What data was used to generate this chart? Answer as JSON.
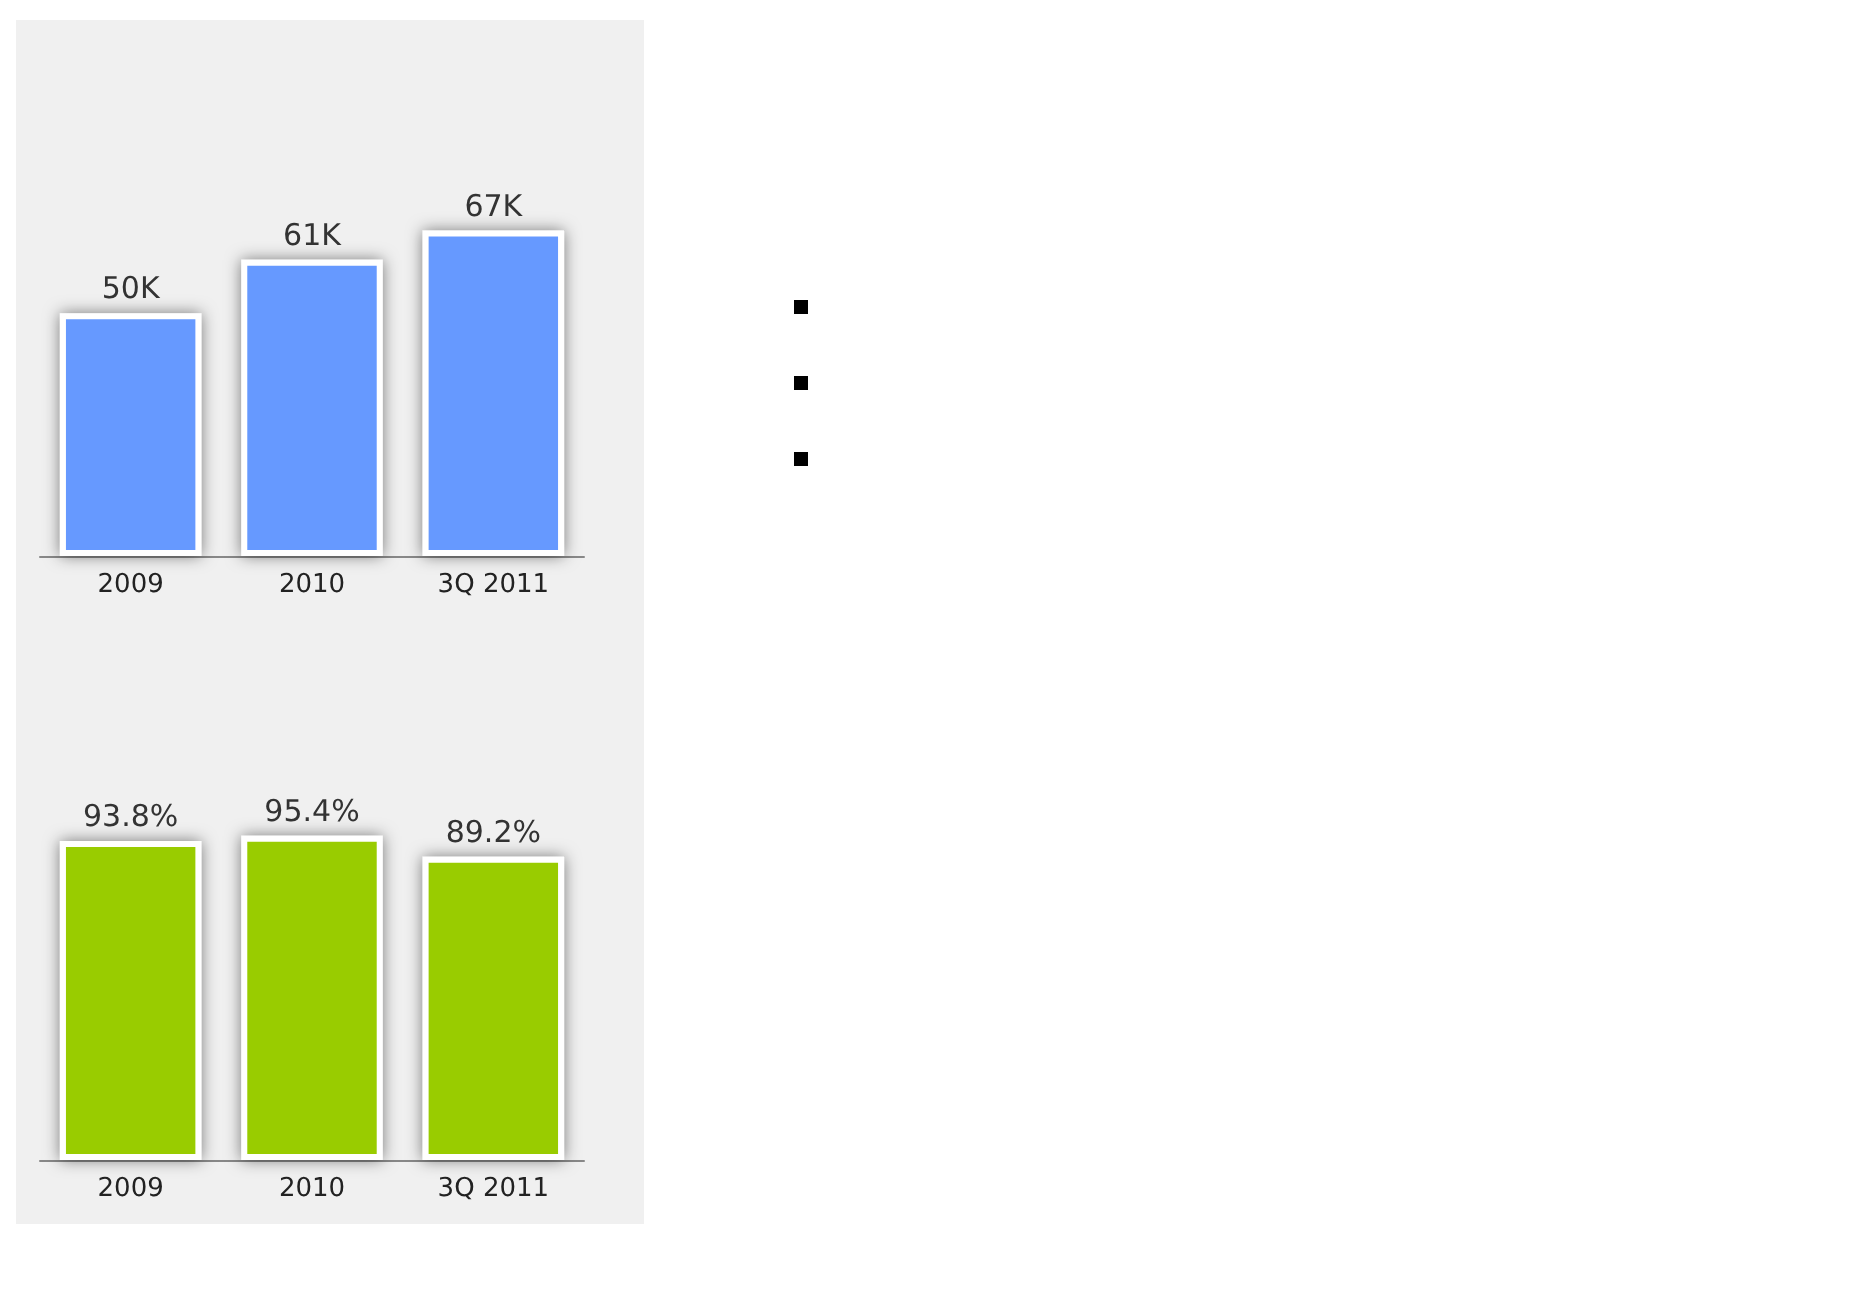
{
  "chart_data": [
    {
      "type": "bar",
      "categories": [
        "2009",
        "2010",
        "3Q 2011"
      ],
      "values": [
        50,
        61,
        67
      ],
      "value_labels": [
        "50K",
        "61K",
        "67K"
      ],
      "color": "#6699ff",
      "tick_labels": "x"
    },
    {
      "type": "bar",
      "categories": [
        "2009",
        "2010",
        "3Q 2011"
      ],
      "values": [
        93.8,
        95.4,
        89.2
      ],
      "value_labels": [
        "93.8%",
        "95.4%",
        "89.2%"
      ],
      "color": "#99cc00",
      "tick_labels": "x"
    }
  ]
}
